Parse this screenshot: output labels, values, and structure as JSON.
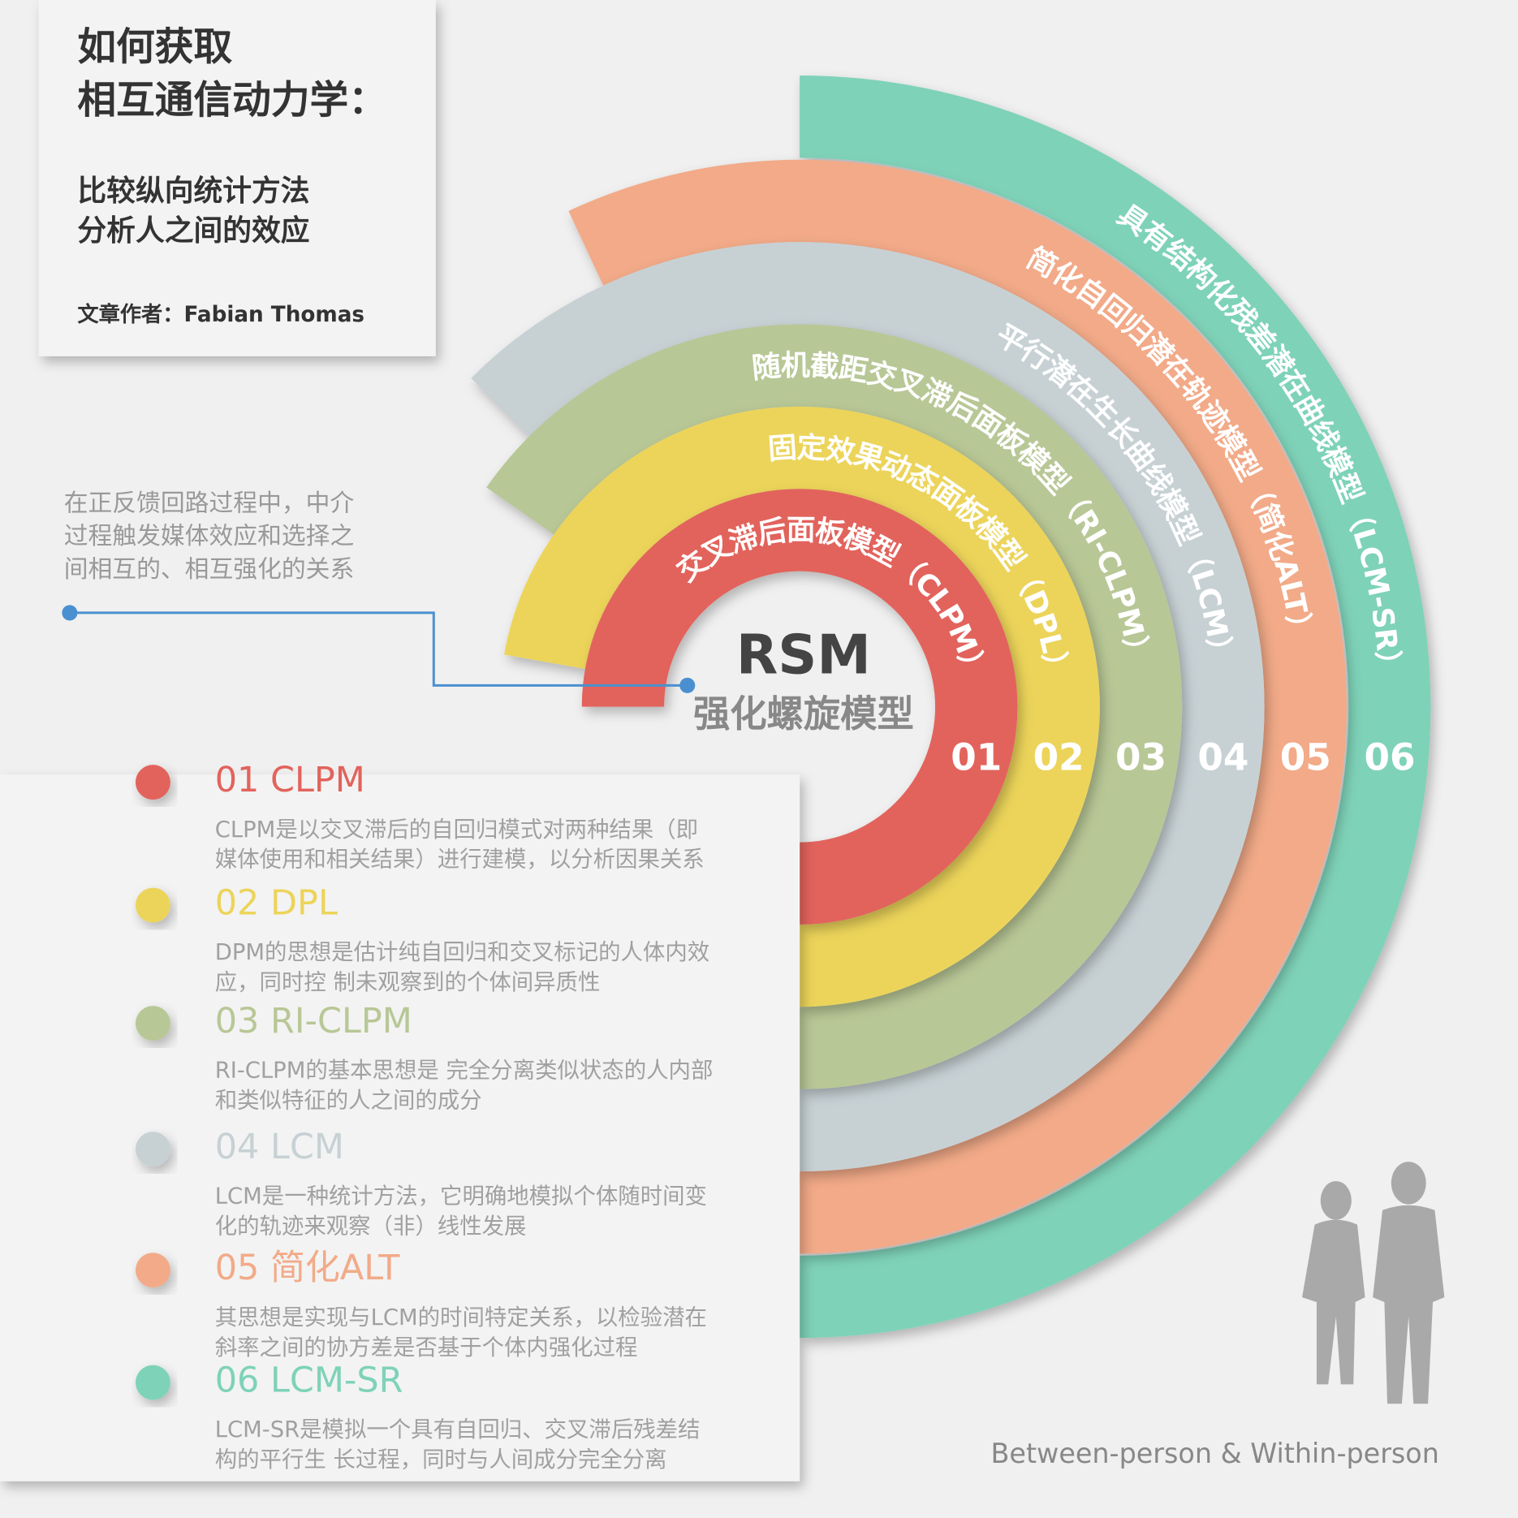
{
  "header": {
    "title": [
      "如何获取",
      "相互通信动力学："
    ],
    "subtitle": [
      "比较纵向统计方法",
      "分析人之间的效应"
    ],
    "author": "文章作者：Fabian Thomas"
  },
  "annotation": [
    "在正反馈回路过程中，中介",
    "过程触发媒体效应和选择之",
    "间相互的、相互强化的关系"
  ],
  "center": {
    "title": "RSM",
    "subtitle": "强化螺旋模型"
  },
  "rings": [
    {
      "number": "01",
      "label": "交叉滞后面板模型（CLPM）",
      "color": "#e2635c"
    },
    {
      "number": "02",
      "label": "固定效果动态面板模型（DPL）",
      "color": "#ecd45a"
    },
    {
      "number": "03",
      "label": "随机截距交叉滞后面板模型（RI-CLPM）",
      "color": "#b8c796"
    },
    {
      "number": "04",
      "label": "平行潜在生长曲线模型（LCM）",
      "color": "#c7d1d4"
    },
    {
      "number": "05",
      "label": "简化自回归潜在轨迹模型（简化ALT）",
      "color": "#f2aa88"
    },
    {
      "number": "06",
      "label": "具有结构化残差潜在曲线模型（LCM-SR）",
      "color": "#7ed2b8"
    }
  ],
  "models": [
    {
      "title": "01 CLPM",
      "description": [
        "CLPM是以交叉滞后的自回归模式对两种结果（即",
        "媒体使用和相关结果）进行建模，以分析因果关系"
      ]
    },
    {
      "title": "02 DPL",
      "description": [
        "DPM的思想是估计纯自回归和交叉标记的人体内效",
        "应，同时控 制未观察到的个体间异质性"
      ]
    },
    {
      "title": "03 RI-CLPM",
      "description": [
        "RI-CLPM的基本思想是 完全分离类似状态的人内部",
        "和类似特征的人之间的成分"
      ]
    },
    {
      "title": "04 LCM",
      "description": [
        "LCM是一种统计方法，它明确地模拟个体随时间变",
        "化的轨迹来观察（非）线性发展"
      ]
    },
    {
      "title": "05 简化ALT",
      "description": [
        "其思想是实现与LCM的时间特定关系，以检验潜在",
        "斜率之间的协方差是否基于个体内强化过程"
      ]
    },
    {
      "title": "06 LCM-SR",
      "description": [
        "LCM-SR是模拟一个具有自回归、交叉滞后残差结",
        "构的平行生 长过程，同时与人间成分完全分离"
      ]
    }
  ],
  "footer": "Between-person & Within-person"
}
